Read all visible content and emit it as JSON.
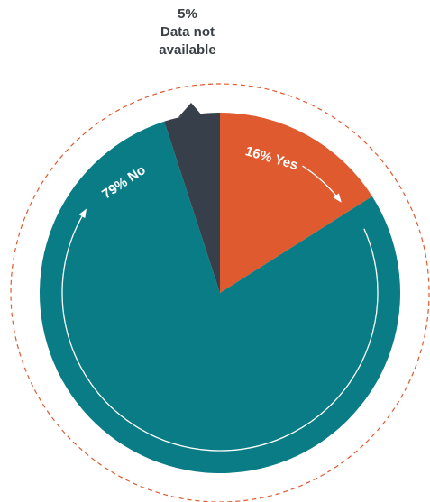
{
  "chart_data": {
    "type": "pie",
    "categories": [
      "Yes",
      "No",
      "Data not available"
    ],
    "values": [
      16,
      79,
      5
    ],
    "value_labels": [
      "16%",
      "79%",
      "5%"
    ],
    "colors": [
      "#e05a2f",
      "#0a7c85",
      "#363f4a"
    ]
  }
}
